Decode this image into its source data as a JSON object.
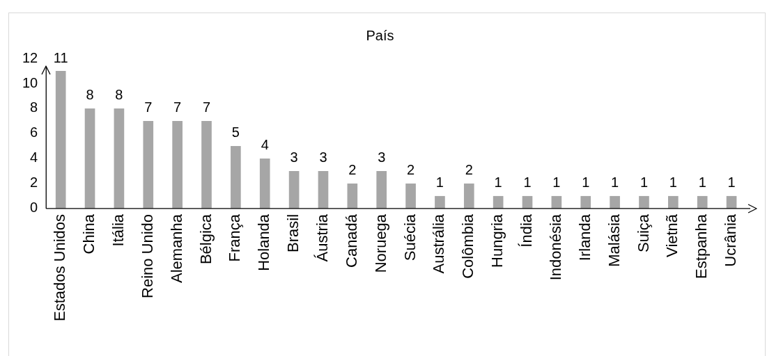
{
  "chart_data": {
    "type": "bar",
    "title": "País",
    "categories": [
      "Estados Unidos",
      "China",
      "Itália",
      "Reino Unido",
      "Alemanha",
      "Bélgica",
      "França",
      "Holanda",
      "Brasil",
      "Áustria",
      "Canadá",
      "Noruega",
      "Suécia",
      "Austrália",
      "Colômbia",
      "Hungria",
      "Índia",
      "Indonésia",
      "Irlanda",
      "Malásia",
      "Suiça",
      "Vietnã",
      "Estpanha",
      "Ucrânia"
    ],
    "values": [
      11,
      8,
      8,
      7,
      7,
      7,
      5,
      4,
      3,
      3,
      2,
      3,
      2,
      1,
      2,
      1,
      1,
      1,
      1,
      1,
      1,
      1,
      1,
      1
    ],
    "color": "#a6a6a6",
    "ylim": [
      0,
      12
    ],
    "yticks": [
      0,
      2,
      4,
      6,
      8,
      10,
      12
    ],
    "grid": false,
    "legend": false,
    "data_labels": true
  }
}
